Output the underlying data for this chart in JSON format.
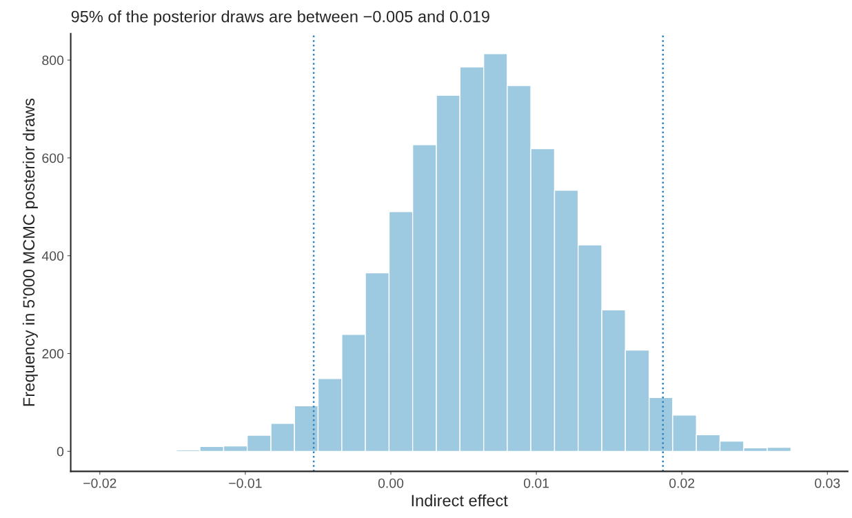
{
  "chart_data": {
    "type": "histogram",
    "title": "95% of the posterior draws are between −0.005 and 0.019",
    "xlabel": "Indirect effect",
    "ylabel": "Frequency in 5'000 MCMC posterior draws",
    "bins": [
      -0.01474,
      -0.01312,
      -0.01149,
      -0.00987,
      -0.00824,
      -0.00662,
      -0.005,
      -0.00337,
      -0.00175,
      -0.00012,
      0.0015,
      0.00313,
      0.00475,
      0.00638,
      0.008,
      0.00962,
      0.01125,
      0.01287,
      0.0145,
      0.01612,
      0.01775,
      0.01937,
      0.021,
      0.02262,
      0.02425,
      0.02587,
      0.0275
    ],
    "values": [
      3,
      10,
      11,
      33,
      57,
      93,
      149,
      239,
      365,
      490,
      627,
      728,
      786,
      813,
      748,
      619,
      534,
      422,
      289,
      207,
      110,
      74,
      34,
      21,
      7,
      8
    ],
    "color": "#9ecae1",
    "xlim": [
      -0.022,
      0.0314
    ],
    "ylim": [
      -41,
      854
    ],
    "xticks": [
      {
        "value": -0.02,
        "label": "−0.02"
      },
      {
        "value": -0.01,
        "label": "−0.01"
      },
      {
        "value": 0,
        "label": "0.00"
      },
      {
        "value": 0.01,
        "label": "0.01"
      },
      {
        "value": 0.02,
        "label": "0.02"
      },
      {
        "value": 0.03,
        "label": "0.03"
      }
    ],
    "yticks": [
      0,
      200,
      400,
      600,
      800
    ],
    "ref_lines": [
      {
        "axis": "x",
        "value": -0.0053,
        "color": "#3182bd",
        "line_style": "dotted"
      },
      {
        "axis": "x",
        "value": 0.0187,
        "color": "#3182bd",
        "line_style": "dotted"
      }
    ],
    "grid": false
  }
}
